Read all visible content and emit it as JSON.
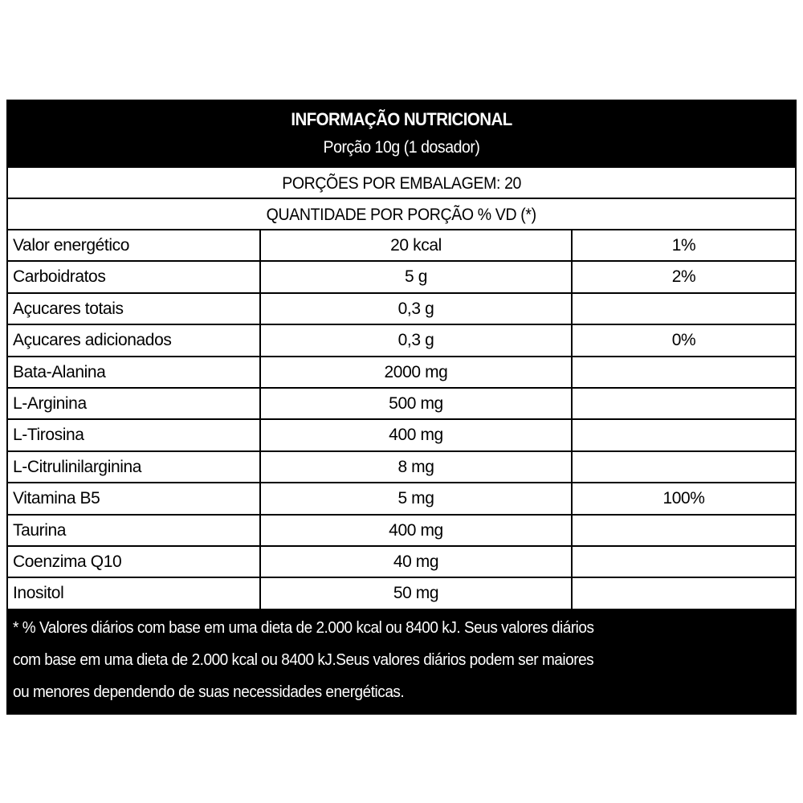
{
  "header": {
    "title": "INFORMAÇÃO NUTRICIONAL",
    "portion": "Porção 10g (1 dosador)"
  },
  "servings": "PORÇÕES POR EMBALAGEM: 20",
  "quantity_header": "QUANTIDADE POR PORÇÃO % VD (*)",
  "rows": [
    {
      "name": "Valor energético",
      "amount": "20 kcal",
      "vd": "1%"
    },
    {
      "name": "Carboidratos",
      "amount": "5 g",
      "vd": "2%"
    },
    {
      "name": "Açucares totais",
      "amount": "0,3 g",
      "vd": ""
    },
    {
      "name": "Açucares adicionados",
      "amount": "0,3 g",
      "vd": "0%"
    },
    {
      "name": "Bata-Alanina",
      "amount": "2000 mg",
      "vd": ""
    },
    {
      "name": "L-Arginina",
      "amount": "500 mg",
      "vd": ""
    },
    {
      "name": "L-Tirosina",
      "amount": "400 mg",
      "vd": ""
    },
    {
      "name": "L-Citrulinilarginina",
      "amount": "8 mg",
      "vd": ""
    },
    {
      "name": "Vitamina B5",
      "amount": "5 mg",
      "vd": "100%"
    },
    {
      "name": "Taurina",
      "amount": "400 mg",
      "vd": ""
    },
    {
      "name": "Coenzima Q10",
      "amount": "40 mg",
      "vd": ""
    },
    {
      "name": "Inositol",
      "amount": "50 mg",
      "vd": ""
    }
  ],
  "footnote": [
    "* % Valores diários com base em uma dieta de 2.000 kcal ou 8400 kJ. Seus valores diários",
    " com base em uma dieta de 2.000 kcal ou 8400 kJ.Seus valores diários podem ser maiores",
    "ou menores dependendo de suas necessidades energéticas."
  ]
}
